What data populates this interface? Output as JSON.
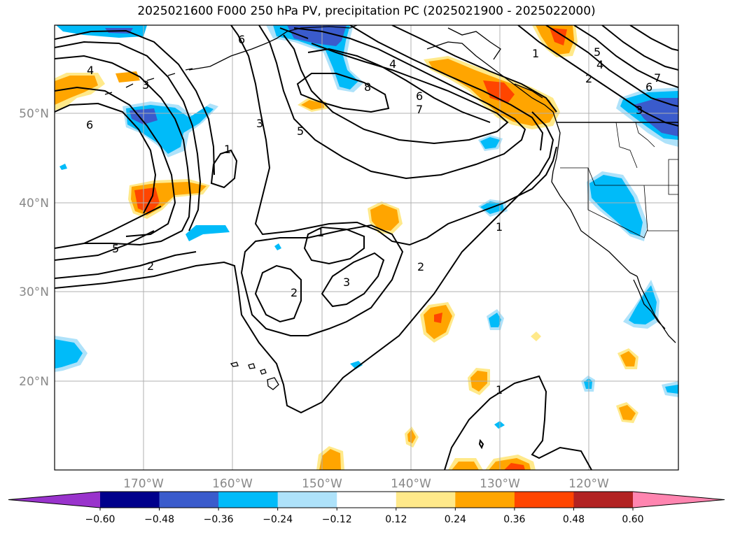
{
  "title": "2025021600 F000 250 hPa PV, precipitation PC (2025021900 - 2025022000)",
  "lat_ticks": [
    "50°N",
    "40°N",
    "30°N",
    "20°N"
  ],
  "lon_ticks": [
    "170°W",
    "160°W",
    "150°W",
    "140°W",
    "130°W",
    "120°W"
  ],
  "colorbar": {
    "ticks": [
      "−0.60",
      "−0.48",
      "−0.36",
      "−0.24",
      "−0.12",
      "0.12",
      "0.24",
      "0.36",
      "0.48",
      "0.60"
    ],
    "colors": [
      "#9933cc",
      "#00008b",
      "#3a5bcc",
      "#00bbf9",
      "#aee2fa",
      "#ffffff",
      "#ffe98a",
      "#ffa500",
      "#ff4500",
      "#b22222",
      "#ff85b0"
    ]
  },
  "contour_labels": [
    "6",
    "4",
    "3",
    "6",
    "1",
    "3",
    "5",
    "8",
    "4",
    "6",
    "7",
    "1",
    "5",
    "4",
    "2",
    "6",
    "3",
    "7",
    "5",
    "2",
    "1",
    "2",
    "3",
    "1",
    "2",
    "1"
  ],
  "colors": {
    "grid": "#b0b0b0",
    "contour": "#000000"
  }
}
